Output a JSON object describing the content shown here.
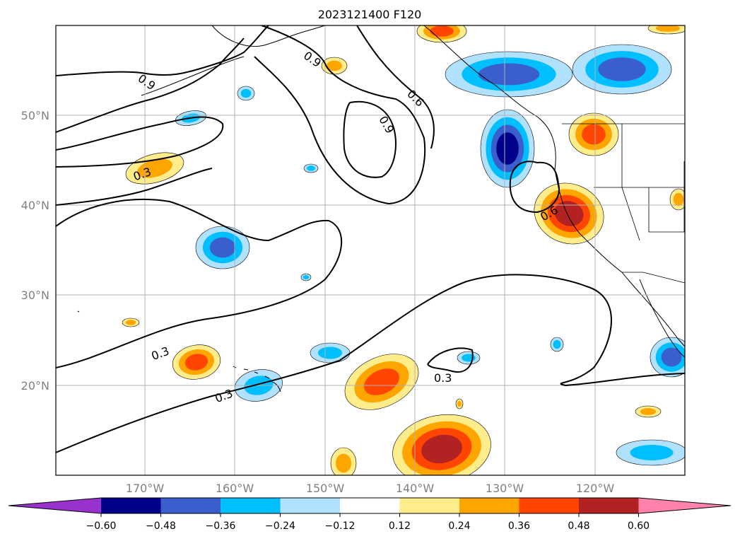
{
  "title": "2023121400 F120",
  "map": {
    "lon_ticks": [
      "170°W",
      "160°W",
      "150°W",
      "140°W",
      "130°W",
      "120°W"
    ],
    "lat_ticks": [
      "50°N",
      "40°N",
      "30°N",
      "20°N"
    ],
    "contour_labels": [
      "0.9",
      "0.9",
      "0.6",
      "0.9",
      "0.3",
      "0.6",
      "0.3",
      "0.3",
      "0.3"
    ]
  },
  "colorbar": {
    "labels": [
      "−0.60",
      "−0.48",
      "−0.36",
      "−0.24",
      "−0.12",
      "0.12",
      "0.24",
      "0.36",
      "0.48",
      "0.60"
    ],
    "colors": [
      "#9932cc",
      "#00008b",
      "#3a5fcd",
      "#00bfff",
      "#b0e2ff",
      "#ffffff",
      "#ffec8b",
      "#ffa500",
      "#ff4500",
      "#b22222",
      "#ff82ab"
    ]
  },
  "palette": {
    "pos1": "#ffec8b",
    "pos2": "#ffa500",
    "pos3": "#ff4500",
    "pos4": "#b22222",
    "neg1": "#b0e2ff",
    "neg2": "#00bfff",
    "neg3": "#3a5fcd",
    "neg4": "#00008b"
  }
}
